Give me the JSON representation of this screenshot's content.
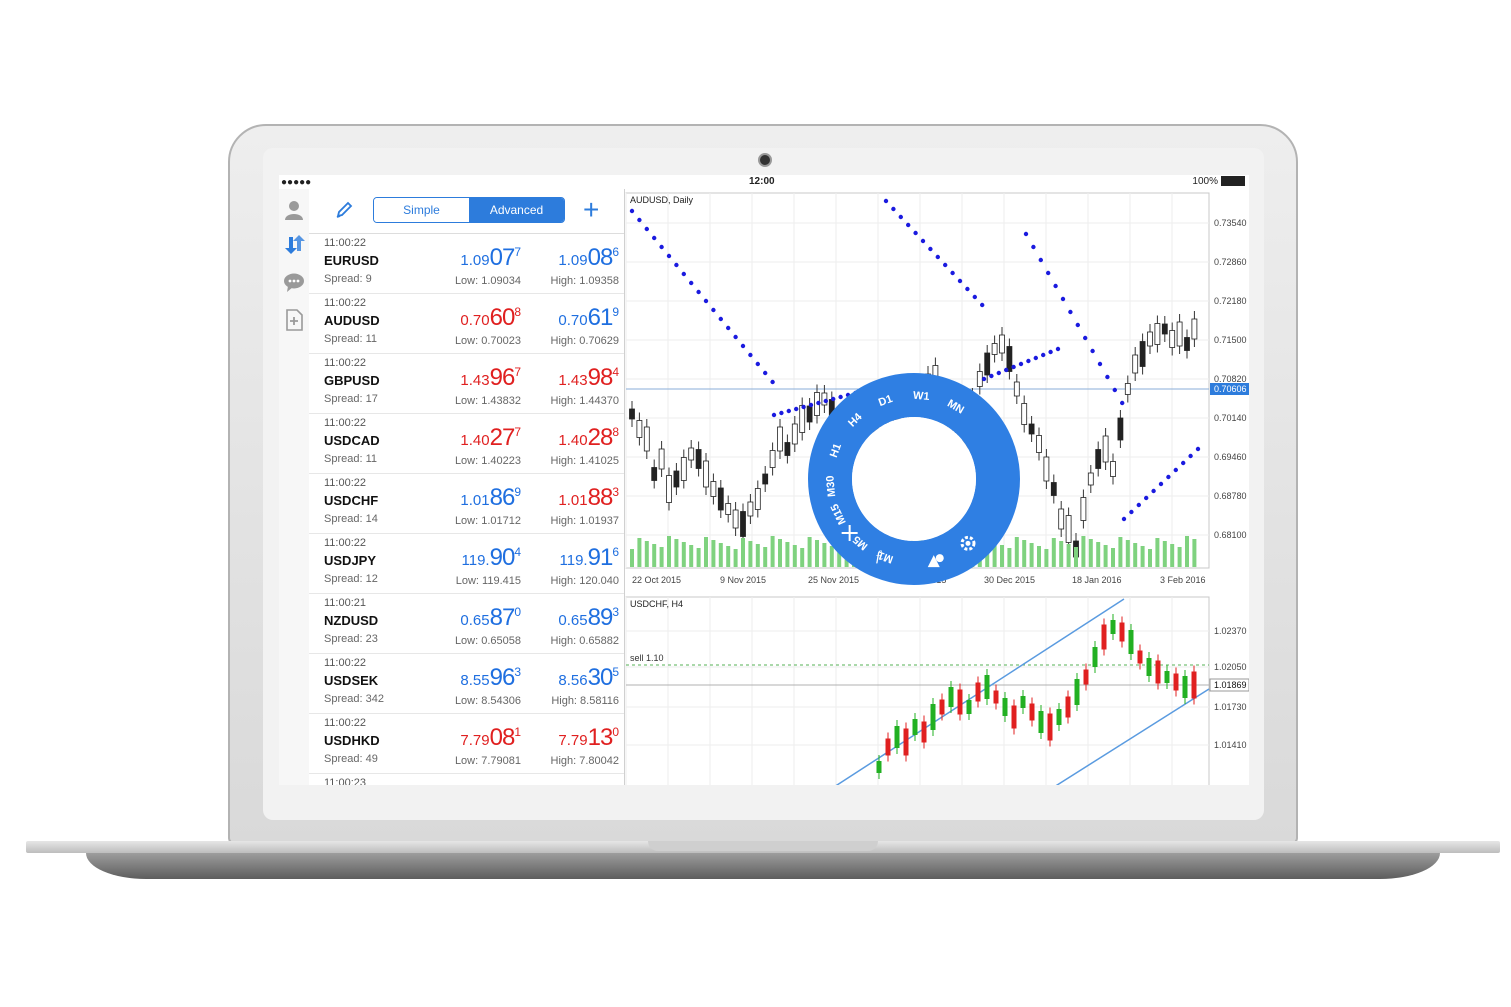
{
  "status_bar": {
    "signal": "●●●●● ",
    "time": "12:00",
    "battery": "100%"
  },
  "toolbar": {
    "simple_label": "Simple",
    "advanced_label": "Advanced",
    "add_label": "+"
  },
  "quotes": [
    {
      "time": "11:00:22",
      "symbol": "EURUSD",
      "spread": "Spread: 9",
      "bid": {
        "a": "1.09",
        "b": "07",
        "c": "7",
        "color": "blue"
      },
      "ask": {
        "a": "1.09",
        "b": "08",
        "c": "6",
        "color": "blue"
      },
      "low": "Low: 1.09034",
      "high": "High: 1.09358"
    },
    {
      "time": "11:00:22",
      "symbol": "AUDUSD",
      "spread": "Spread: 11",
      "bid": {
        "a": "0.70",
        "b": "60",
        "c": "8",
        "color": "red"
      },
      "ask": {
        "a": "0.70",
        "b": "61",
        "c": "9",
        "color": "blue"
      },
      "low": "Low: 0.70023",
      "high": "High: 0.70629"
    },
    {
      "time": "11:00:22",
      "symbol": "GBPUSD",
      "spread": "Spread: 17",
      "bid": {
        "a": "1.43",
        "b": "96",
        "c": "7",
        "color": "red"
      },
      "ask": {
        "a": "1.43",
        "b": "98",
        "c": "4",
        "color": "red"
      },
      "low": "Low: 1.43832",
      "high": "High: 1.44370"
    },
    {
      "time": "11:00:22",
      "symbol": "USDCAD",
      "spread": "Spread: 11",
      "bid": {
        "a": "1.40",
        "b": "27",
        "c": "7",
        "color": "red"
      },
      "ask": {
        "a": "1.40",
        "b": "28",
        "c": "8",
        "color": "red"
      },
      "low": "Low: 1.40223",
      "high": "High: 1.41025"
    },
    {
      "time": "11:00:22",
      "symbol": "USDCHF",
      "spread": "Spread: 14",
      "bid": {
        "a": "1.01",
        "b": "86",
        "c": "9",
        "color": "blue"
      },
      "ask": {
        "a": "1.01",
        "b": "88",
        "c": "3",
        "color": "red"
      },
      "low": "Low: 1.01712",
      "high": "High: 1.01937"
    },
    {
      "time": "11:00:22",
      "symbol": "USDJPY",
      "spread": "Spread: 12",
      "bid": {
        "a": "119.",
        "b": "90",
        "c": "4",
        "color": "blue"
      },
      "ask": {
        "a": "119.",
        "b": "91",
        "c": "6",
        "color": "blue"
      },
      "low": "Low: 119.415",
      "high": "High: 120.040"
    },
    {
      "time": "11:00:21",
      "symbol": "NZDUSD",
      "spread": "Spread: 23",
      "bid": {
        "a": "0.65",
        "b": "87",
        "c": "0",
        "color": "blue"
      },
      "ask": {
        "a": "0.65",
        "b": "89",
        "c": "3",
        "color": "blue"
      },
      "low": "Low: 0.65058",
      "high": "High: 0.65882"
    },
    {
      "time": "11:00:22",
      "symbol": "USDSEK",
      "spread": "Spread: 342",
      "bid": {
        "a": "8.55",
        "b": "96",
        "c": "3",
        "color": "blue"
      },
      "ask": {
        "a": "8.56",
        "b": "30",
        "c": "5",
        "color": "blue"
      },
      "low": "Low: 8.54306",
      "high": "High: 8.58116"
    },
    {
      "time": "11:00:22",
      "symbol": "USDHKD",
      "spread": "Spread: 49",
      "bid": {
        "a": "7.79",
        "b": "08",
        "c": "1",
        "color": "red"
      },
      "ask": {
        "a": "7.79",
        "b": "13",
        "c": "0",
        "color": "red"
      },
      "low": "Low: 7.79081",
      "high": "High: 7.80042"
    },
    {
      "time": "11:00:23",
      "symbol": "",
      "spread": "",
      "bid": {
        "a": "",
        "b": "",
        "c": "",
        "color": "red"
      },
      "ask": {
        "a": "",
        "b": "",
        "c": "",
        "color": "red"
      },
      "low": "",
      "high": ""
    }
  ],
  "chart_top": {
    "title": "AUDUSD, Daily",
    "price_labels": [
      "0.73540",
      "0.72860",
      "0.72180",
      "0.71500",
      "0.70820",
      "0.70140",
      "0.69460",
      "0.68780",
      "0.68100"
    ],
    "current_price": "0.70606",
    "date_labels": [
      "22 Oct 2015",
      "9 Nov 2015",
      "25 Nov 2015",
      "11 Dec 2015",
      "30 Dec 2015",
      "18 Jan 2016",
      "3 Feb 2016"
    ]
  },
  "chart_bottom": {
    "title": "USDCHF, H4",
    "price_labels": [
      "1.02370",
      "1.02050",
      "1.01730",
      "1.01410"
    ],
    "current_price": "1.01869",
    "order_label": "sell 1.10"
  },
  "timeframe_wheel": {
    "timeframes": [
      "M1",
      "M5",
      "M15",
      "M30",
      "H1",
      "H4",
      "D1",
      "W1",
      "MN"
    ],
    "actions": [
      "crosshair-icon",
      "indicators-icon",
      "objects-icon",
      "settings-icon"
    ],
    "color": "#2f7fe3"
  },
  "colors": {
    "accent": "#2d7cdc",
    "bid_up": "#1f6fe0",
    "bid_down": "#e02020",
    "bull": "#22b022",
    "bear": "#e02020",
    "psar": "#1a1adf"
  }
}
